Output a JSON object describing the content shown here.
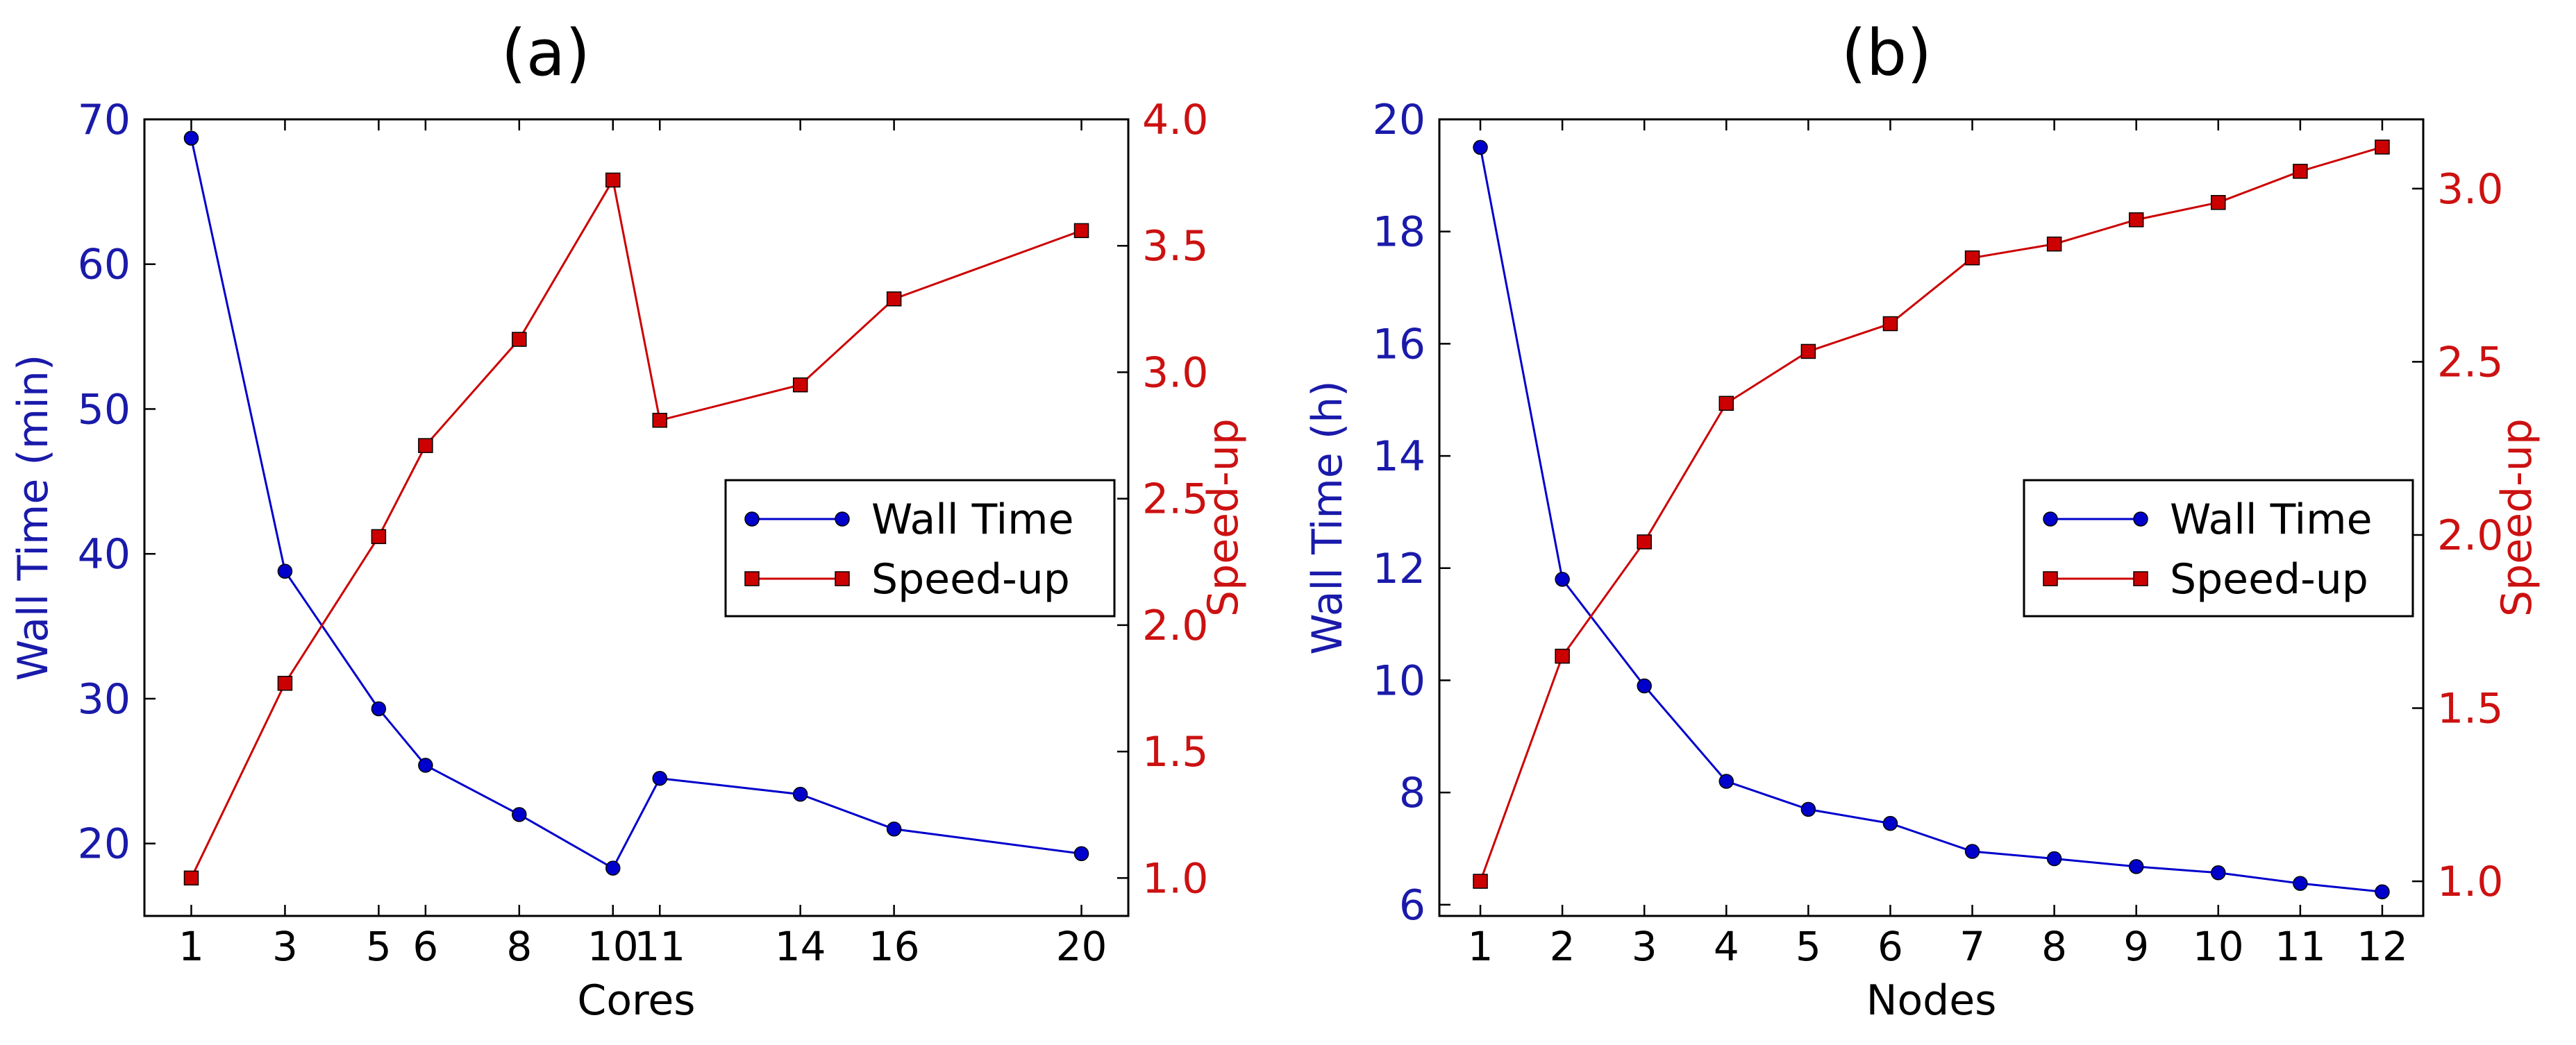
{
  "chart_data": [
    {
      "type": "line",
      "title": "(a)",
      "xlabel": "Cores",
      "ylabel_left": "Wall Time (min)",
      "ylabel_right": "Speed-up",
      "x": [
        1,
        3,
        5,
        6,
        8,
        10,
        11,
        14,
        16,
        20
      ],
      "x_ticks": [
        1,
        3,
        5,
        6,
        8,
        10,
        11,
        14,
        16,
        20
      ],
      "xlim": [
        0,
        21
      ],
      "ylim_left": [
        15,
        70
      ],
      "yticks_left": [
        20,
        30,
        40,
        50,
        60,
        70
      ],
      "ylim_right": [
        0.85,
        4.0
      ],
      "yticks_right": [
        "1.0",
        "1.5",
        "2.0",
        "2.5",
        "3.0",
        "3.5",
        "4.0"
      ],
      "series": [
        {
          "name": "Wall Time",
          "axis": "left",
          "color": "#0000cc",
          "marker": "circle",
          "values": [
            68.7,
            38.8,
            29.3,
            25.4,
            22.0,
            18.3,
            24.5,
            23.4,
            21.0,
            19.3
          ]
        },
        {
          "name": "Speed-up",
          "axis": "right",
          "color": "#cc0000",
          "marker": "square",
          "values": [
            1.0,
            1.77,
            2.35,
            2.71,
            3.13,
            3.76,
            2.81,
            2.95,
            3.29,
            3.56
          ]
        }
      ],
      "legend": {
        "position": "center-right",
        "entries": [
          "Wall Time",
          "Speed-up"
        ]
      }
    },
    {
      "type": "line",
      "title": "(b)",
      "xlabel": "Nodes",
      "ylabel_left": "Wall Time (h)",
      "ylabel_right": "Speed-up",
      "x": [
        1,
        2,
        3,
        4,
        5,
        6,
        7,
        8,
        9,
        10,
        11,
        12
      ],
      "x_ticks": [
        1,
        2,
        3,
        4,
        5,
        6,
        7,
        8,
        9,
        10,
        11,
        12
      ],
      "xlim": [
        0.5,
        12.5
      ],
      "ylim_left": [
        5.8,
        20
      ],
      "yticks_left": [
        6,
        8,
        10,
        12,
        14,
        16,
        18,
        20
      ],
      "ylim_right": [
        0.9,
        3.2
      ],
      "yticks_right": [
        "1.0",
        "1.5",
        "2.0",
        "2.5",
        "3.0"
      ],
      "series": [
        {
          "name": "Wall Time",
          "axis": "left",
          "color": "#0000cc",
          "marker": "circle",
          "values": [
            19.5,
            11.8,
            9.9,
            8.2,
            7.7,
            7.45,
            6.95,
            6.82,
            6.68,
            6.57,
            6.38,
            6.23
          ]
        },
        {
          "name": "Speed-up",
          "axis": "right",
          "color": "#cc0000",
          "marker": "square",
          "values": [
            1.0,
            1.65,
            1.98,
            2.38,
            2.53,
            2.61,
            2.8,
            2.84,
            2.91,
            2.96,
            3.05,
            3.12
          ]
        }
      ],
      "legend": {
        "position": "center-right",
        "entries": [
          "Wall Time",
          "Speed-up"
        ]
      }
    }
  ]
}
